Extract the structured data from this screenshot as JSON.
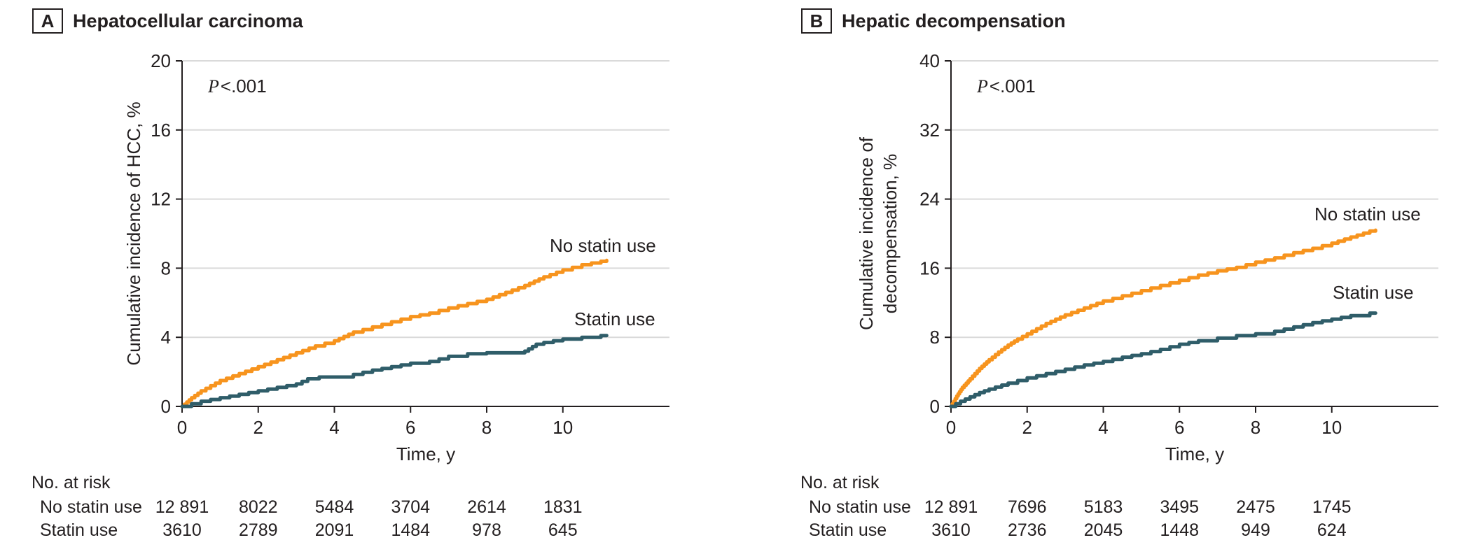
{
  "chart_data": [
    {
      "type": "line",
      "tag": "A",
      "title": "Hepatocellular carcinoma",
      "p_label": "P",
      "p_value": "<.001",
      "xlabel": "Time, y",
      "ylabel": "Cumulative incidence of HCC, %",
      "ylabel_lines": [
        "Cumulative incidence of HCC, %"
      ],
      "xlim": [
        0,
        12.8
      ],
      "ylim": [
        0,
        20
      ],
      "xticks": [
        0,
        2,
        4,
        6,
        8,
        10
      ],
      "yticks": [
        0,
        4,
        8,
        12,
        16,
        20
      ],
      "grid": "horizontal",
      "legend_position": "inline-labels",
      "series": [
        {
          "name": "No statin use",
          "color": "#F7941E",
          "points": [
            [
              0,
              0
            ],
            [
              0.25,
              0.5
            ],
            [
              0.5,
              0.9
            ],
            [
              0.75,
              1.2
            ],
            [
              1,
              1.5
            ],
            [
              1.5,
              1.9
            ],
            [
              2,
              2.3
            ],
            [
              2.5,
              2.7
            ],
            [
              3,
              3.1
            ],
            [
              3.5,
              3.5
            ],
            [
              4,
              3.8
            ],
            [
              4.5,
              4.3
            ],
            [
              5,
              4.6
            ],
            [
              5.5,
              4.9
            ],
            [
              6,
              5.2
            ],
            [
              6.5,
              5.4
            ],
            [
              7,
              5.7
            ],
            [
              7.5,
              5.95
            ],
            [
              8,
              6.2
            ],
            [
              8.5,
              6.6
            ],
            [
              9,
              7.0
            ],
            [
              9.5,
              7.5
            ],
            [
              10,
              7.9
            ],
            [
              10.5,
              8.2
            ],
            [
              11,
              8.4
            ],
            [
              11.15,
              8.45
            ]
          ]
        },
        {
          "name": "Statin use",
          "color": "#2F5D69",
          "points": [
            [
              0,
              0
            ],
            [
              0.5,
              0.3
            ],
            [
              1,
              0.5
            ],
            [
              1.5,
              0.7
            ],
            [
              2,
              0.9
            ],
            [
              2.5,
              1.1
            ],
            [
              3,
              1.3
            ],
            [
              3.3,
              1.6
            ],
            [
              3.6,
              1.7
            ],
            [
              4,
              1.7
            ],
            [
              4.5,
              1.85
            ],
            [
              5,
              2.1
            ],
            [
              5.5,
              2.3
            ],
            [
              6,
              2.5
            ],
            [
              6.5,
              2.6
            ],
            [
              7,
              2.9
            ],
            [
              7.5,
              3.05
            ],
            [
              8,
              3.1
            ],
            [
              8.5,
              3.1
            ],
            [
              9,
              3.2
            ],
            [
              9.3,
              3.6
            ],
            [
              9.5,
              3.7
            ],
            [
              10,
              3.9
            ],
            [
              10.5,
              4.0
            ],
            [
              11,
              4.1
            ],
            [
              11.15,
              4.1
            ]
          ]
        }
      ],
      "at_risk": {
        "label": "No. at risk",
        "times": [
          0,
          2,
          4,
          6,
          8,
          10
        ],
        "rows": [
          {
            "name": "No statin use",
            "counts": [
              "12 891",
              "8022",
              "5484",
              "3704",
              "2614",
              "1831"
            ]
          },
          {
            "name": "Statin use",
            "counts": [
              "3610",
              "2789",
              "2091",
              "1484",
              "978",
              "645"
            ]
          }
        ]
      }
    },
    {
      "type": "line",
      "tag": "B",
      "title": "Hepatic decompensation",
      "p_label": "P",
      "p_value": "<.001",
      "xlabel": "Time, y",
      "ylabel": "Cumulative incidence of decompensation, %",
      "ylabel_lines": [
        "Cumulative incidence of",
        "decompensation, %"
      ],
      "xlim": [
        0,
        12.8
      ],
      "ylim": [
        0,
        40
      ],
      "xticks": [
        0,
        2,
        4,
        6,
        8,
        10
      ],
      "yticks": [
        0,
        8,
        16,
        24,
        32,
        40
      ],
      "grid": "horizontal",
      "legend_position": "inline-labels",
      "series": [
        {
          "name": "No statin use",
          "color": "#F7941E",
          "points": [
            [
              0,
              0
            ],
            [
              0.15,
              1.2
            ],
            [
              0.3,
              2.2
            ],
            [
              0.5,
              3.2
            ],
            [
              0.75,
              4.4
            ],
            [
              1,
              5.4
            ],
            [
              1.25,
              6.3
            ],
            [
              1.5,
              7.1
            ],
            [
              1.75,
              7.8
            ],
            [
              2,
              8.4
            ],
            [
              2.5,
              9.6
            ],
            [
              3,
              10.6
            ],
            [
              3.5,
              11.4
            ],
            [
              4,
              12.2
            ],
            [
              4.5,
              12.8
            ],
            [
              5,
              13.4
            ],
            [
              5.5,
              14.0
            ],
            [
              6,
              14.6
            ],
            [
              6.5,
              15.2
            ],
            [
              7,
              15.7
            ],
            [
              7.5,
              16.1
            ],
            [
              8,
              16.7
            ],
            [
              8.5,
              17.2
            ],
            [
              9,
              17.8
            ],
            [
              9.5,
              18.3
            ],
            [
              10,
              18.9
            ],
            [
              10.5,
              19.6
            ],
            [
              11,
              20.3
            ],
            [
              11.15,
              20.4
            ]
          ]
        },
        {
          "name": "Statin use",
          "color": "#2F5D69",
          "points": [
            [
              0,
              0
            ],
            [
              0.25,
              0.6
            ],
            [
              0.5,
              1.1
            ],
            [
              0.75,
              1.6
            ],
            [
              1,
              2.0
            ],
            [
              1.5,
              2.7
            ],
            [
              2,
              3.3
            ],
            [
              2.5,
              3.8
            ],
            [
              3,
              4.3
            ],
            [
              3.5,
              4.8
            ],
            [
              4,
              5.2
            ],
            [
              4.5,
              5.7
            ],
            [
              5,
              6.1
            ],
            [
              5.5,
              6.6
            ],
            [
              6,
              7.2
            ],
            [
              6.5,
              7.6
            ],
            [
              7,
              7.9
            ],
            [
              7.5,
              8.2
            ],
            [
              8,
              8.4
            ],
            [
              8.5,
              8.7
            ],
            [
              9,
              9.2
            ],
            [
              9.5,
              9.7
            ],
            [
              10,
              10.1
            ],
            [
              10.5,
              10.5
            ],
            [
              11,
              10.8
            ],
            [
              11.15,
              10.8
            ]
          ]
        }
      ],
      "at_risk": {
        "label": "No. at risk",
        "times": [
          0,
          2,
          4,
          6,
          8,
          10
        ],
        "rows": [
          {
            "name": "No statin use",
            "counts": [
              "12 891",
              "7696",
              "5183",
              "3495",
              "2475",
              "1745"
            ]
          },
          {
            "name": "Statin use",
            "counts": [
              "3610",
              "2736",
              "2045",
              "1448",
              "949",
              "624"
            ]
          }
        ]
      }
    }
  ]
}
